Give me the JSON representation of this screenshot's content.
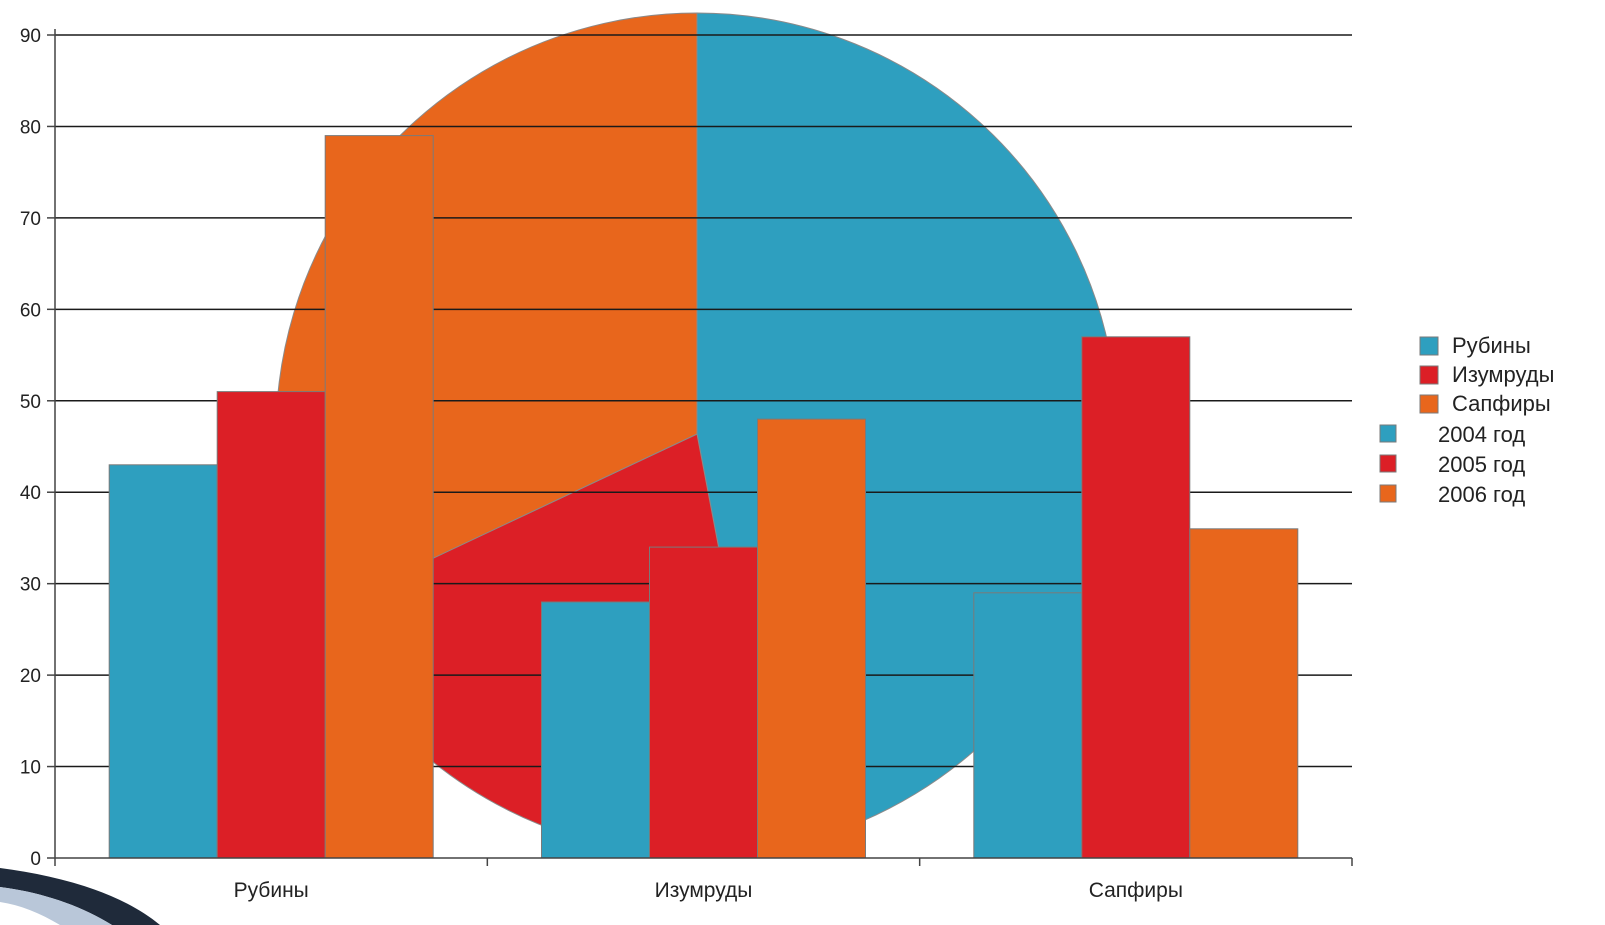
{
  "chart_data": [
    {
      "type": "pie",
      "slices": [
        {
          "label": "Рубины",
          "value": 47,
          "color": "#2e9fbf"
        },
        {
          "label": "Изумруды",
          "value": 21,
          "color": "#dc1f26"
        },
        {
          "label": "Сапфиры",
          "value": 32,
          "color": "#e8661c"
        }
      ],
      "legend": {
        "placement": "right",
        "entries": [
          {
            "label": "Рубины",
            "color": "#2e9fbf"
          },
          {
            "label": "Изумруды",
            "color": "#dc1f26"
          },
          {
            "label": "Сапфиры",
            "color": "#e8661c"
          }
        ]
      }
    },
    {
      "type": "bar",
      "categories": [
        "Рубины",
        "Изумруды",
        "Сапфиры"
      ],
      "series": [
        {
          "name": "2004 год",
          "values": [
            43,
            28,
            29
          ],
          "color": "#2e9fbf"
        },
        {
          "name": "2005 год",
          "values": [
            51,
            34,
            57
          ],
          "color": "#dc1f26"
        },
        {
          "name": "2006 год",
          "values": [
            79,
            48,
            36
          ],
          "color": "#e8661c"
        }
      ],
      "ylim": [
        0,
        90
      ],
      "yticks": [
        0,
        10,
        20,
        30,
        40,
        50,
        60,
        70,
        80,
        90
      ],
      "grid": true,
      "legend": {
        "placement": "right"
      }
    }
  ]
}
